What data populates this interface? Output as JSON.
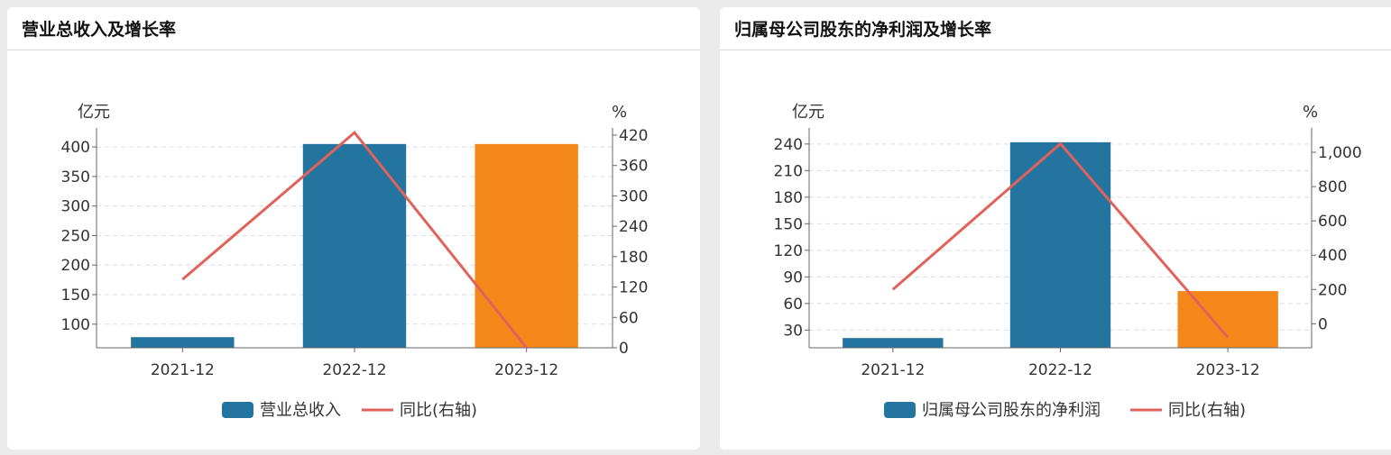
{
  "colors": {
    "bar_actual": "#2474a0",
    "bar_forecast": "#f5881b",
    "line": "#e0625a",
    "axis": "#666666",
    "grid": "#dddddd"
  },
  "chart_data": [
    {
      "type": "bar",
      "title": "营业总收入及增长率",
      "categories": [
        "2021-12",
        "2022-12",
        "2023-12"
      ],
      "left_unit": "亿元",
      "right_unit": "%",
      "left_ticks": [
        "100",
        "150",
        "200",
        "250",
        "300",
        "350",
        "400"
      ],
      "right_ticks": [
        "0",
        "60",
        "120",
        "180",
        "240",
        "300",
        "360",
        "420"
      ],
      "ylim": [
        60,
        420
      ],
      "y2lim": [
        0,
        420
      ],
      "grid": true,
      "legend_position": "bottom",
      "series": [
        {
          "name": "营业总收入",
          "kind": "bar",
          "axis": "left",
          "values": [
            78,
            405,
            405
          ]
        },
        {
          "name": "同比(右轴)",
          "kind": "line",
          "axis": "right",
          "values": [
            135,
            425,
            0
          ]
        }
      ],
      "forecast_index": 2
    },
    {
      "type": "bar",
      "title": "归属母公司股东的净利润及增长率",
      "categories": [
        "2021-12",
        "2022-12",
        "2023-12"
      ],
      "left_unit": "亿元",
      "right_unit": "%",
      "left_ticks": [
        "30",
        "60",
        "90",
        "120",
        "150",
        "180",
        "210",
        "240"
      ],
      "right_ticks": [
        "0",
        "200",
        "400",
        "600",
        "800",
        "1,000"
      ],
      "ylim": [
        10,
        250
      ],
      "y2lim": [
        -140,
        1100
      ],
      "grid": true,
      "legend_position": "bottom",
      "series": [
        {
          "name": "归属母公司股东的净利润",
          "kind": "bar",
          "axis": "left",
          "values": [
            21,
            242,
            74
          ]
        },
        {
          "name": "同比(右轴)",
          "kind": "line",
          "axis": "right",
          "values": [
            200,
            1050,
            -80
          ]
        }
      ],
      "forecast_index": 2
    }
  ]
}
